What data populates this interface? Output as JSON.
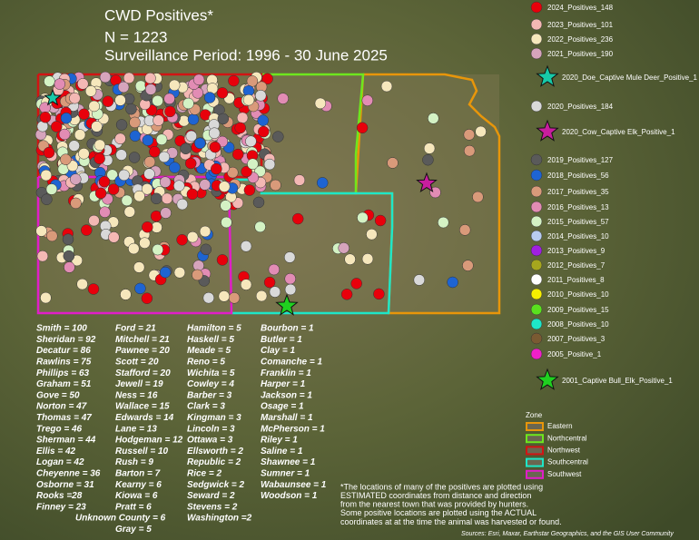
{
  "title": {
    "line1": "CWD Positives*",
    "line2": "N = 1223",
    "line3": "Surveillance Period: 1996 - 30 June 2025"
  },
  "legend": [
    {
      "label": "2024_Positives_148",
      "color": "#e8000b",
      "shape": "circle"
    },
    {
      "label": "2023_Positives_101",
      "color": "#f4b8b4",
      "shape": "circle"
    },
    {
      "label": "2022_Positives_236",
      "color": "#f6e7bc",
      "shape": "circle"
    },
    {
      "label": "2021_Positives_190",
      "color": "#d6a4bc",
      "shape": "circle"
    },
    {
      "label": "2020_Doe_Captive Mule Deer_Positive_1",
      "color": "#17c9a8",
      "shape": "star"
    },
    {
      "label": "2020_Positives_184",
      "color": "#d9d9d9",
      "shape": "circle"
    },
    {
      "label": "2020_Cow_Captive Elk_Positive_1",
      "color": "#c81e9e",
      "shape": "star"
    },
    {
      "label": "2019_Positives_127",
      "color": "#5a5a5a",
      "shape": "circle"
    },
    {
      "label": "2018_Positives_56",
      "color": "#1e64d2",
      "shape": "circle"
    },
    {
      "label": "2017_Positives_35",
      "color": "#d99a7a",
      "shape": "circle"
    },
    {
      "label": "2016_Positives_13",
      "color": "#e28cb4",
      "shape": "circle"
    },
    {
      "label": "2015_Positives_57",
      "color": "#d4f2c4",
      "shape": "circle"
    },
    {
      "label": "2014_Positives_10",
      "color": "#b8ccf0",
      "shape": "circle"
    },
    {
      "label": "2013_Positives_9",
      "color": "#a020e0",
      "shape": "circle"
    },
    {
      "label": "2012_Positives_7",
      "color": "#a6a61e",
      "shape": "circle"
    },
    {
      "label": "2011_Positives_8",
      "color": "#ffffff",
      "shape": "circle"
    },
    {
      "label": "2010_Positives_10",
      "color": "#f6f000",
      "shape": "circle"
    },
    {
      "label": "2009_Positives_15",
      "color": "#5ae01e",
      "shape": "circle"
    },
    {
      "label": "2008_Positives_10",
      "color": "#1ee6c8",
      "shape": "circle"
    },
    {
      "label": "2007_Positives_3",
      "color": "#7a5a32",
      "shape": "circle"
    },
    {
      "label": "2005_Positive_1",
      "color": "#f020c8",
      "shape": "circle"
    },
    {
      "label": "2001_Captive Bull_Elk_Positive_1",
      "color": "#20d020",
      "shape": "star"
    }
  ],
  "zone_legend": {
    "title": "Zone",
    "items": [
      {
        "label": "Eastern",
        "color": "#e8960a"
      },
      {
        "label": "Northcentral",
        "color": "#6ee61e"
      },
      {
        "label": "Northwest",
        "color": "#d21414"
      },
      {
        "label": "Southcentral",
        "color": "#1ee6c8"
      },
      {
        "label": "Southwest",
        "color": "#e01ec8"
      }
    ]
  },
  "county_counts": [
    [
      "Smith = 100",
      "Sheridan = 92",
      "Decatur = 86",
      "Rawlins = 75",
      "Phillips = 63",
      "Graham = 51",
      "Gove = 50",
      "Norton = 47",
      "Thomas = 47",
      "Trego = 46",
      "Sherman = 44",
      "Ellis = 42",
      "Logan = 42",
      "Cheyenne = 36",
      "Osborne = 31",
      "Rooks =28",
      "Finney = 23"
    ],
    [
      "Ford = 21",
      "Mitchell = 21",
      "Pawnee = 20",
      "Scott = 20",
      "Stafford = 20",
      "Jewell = 19",
      "Ness = 16",
      "Wallace = 15",
      "Edwards = 14",
      "Lane = 13",
      "Hodgeman = 12",
      "Russell = 10",
      "Rush = 9",
      "Barton = 7",
      "Kearny = 6",
      "Kiowa = 6",
      "Pratt = 6",
      "Unknown County = 6",
      "Gray = 5"
    ],
    [
      "Hamilton = 5",
      "Haskell = 5",
      "Meade = 5",
      "Reno = 5",
      "Wichita = 5",
      "Cowley = 4",
      "Barber = 3",
      "Clark = 3",
      "Kingman = 3",
      "Lincoln = 3",
      "Ottawa = 3",
      "Ellsworth = 2",
      "Republic = 2",
      "Rice = 2",
      "Sedgwick = 2",
      "Seward = 2",
      "Stevens = 2",
      "Washington =2"
    ],
    [
      "Bourbon = 1",
      "Butler = 1",
      "Clay = 1",
      "Comanche = 1",
      "Franklin = 1",
      "Harper = 1",
      "Jackson = 1",
      "Osage = 1",
      "Marshall = 1",
      "McPherson = 1",
      "Riley = 1",
      "Saline = 1",
      "Shawnee = 1",
      "Sumner = 1",
      "Wabaunsee = 1",
      "Woodson = 1"
    ]
  ],
  "footnote": [
    "*The locations of many of the positives are plotted using",
    "ESTIMATED coordinates from distance and direction",
    "from the nearest town that was provided by hunters.",
    "Some positive locations are plotted using the ACTUAL",
    "coordinates at at the time the animal was harvested or found."
  ],
  "attribution": "Sources: Esri, Maxar, Earthstar Geographics, and the GIS User Community"
}
